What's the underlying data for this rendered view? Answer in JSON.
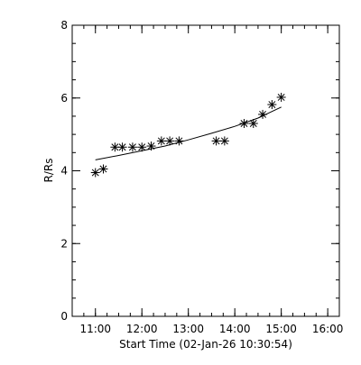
{
  "chart_data": {
    "type": "scatter",
    "title": "",
    "xlabel": "Start Time (02-Jan-26 10:30:54)",
    "ylabel": "R/Rs",
    "x_unit": "hours",
    "xlim": [
      10.5,
      16.25
    ],
    "ylim": [
      0,
      8
    ],
    "grid": false,
    "x_ticks": [
      {
        "value": 11,
        "label": "11:00"
      },
      {
        "value": 12,
        "label": "12:00"
      },
      {
        "value": 13,
        "label": "13:00"
      },
      {
        "value": 14,
        "label": "14:00"
      },
      {
        "value": 15,
        "label": "15:00"
      },
      {
        "value": 16,
        "label": "16:00"
      }
    ],
    "x_minor_step": 0.25,
    "y_ticks": [
      {
        "value": 0,
        "label": "0"
      },
      {
        "value": 2,
        "label": "2"
      },
      {
        "value": 4,
        "label": "4"
      },
      {
        "value": 6,
        "label": "6"
      },
      {
        "value": 8,
        "label": "8"
      }
    ],
    "y_minor_step": 0.5,
    "series": [
      {
        "type": "scatter",
        "marker": "asterisk",
        "x": [
          11.0,
          11.17,
          11.42,
          11.58,
          11.8,
          12.0,
          12.2,
          12.42,
          12.6,
          12.8,
          13.6,
          13.78,
          14.2,
          14.4,
          14.6,
          14.8,
          15.0
        ],
        "y": [
          3.95,
          4.05,
          4.65,
          4.65,
          4.65,
          4.65,
          4.68,
          4.82,
          4.82,
          4.82,
          4.82,
          4.82,
          5.3,
          5.3,
          5.55,
          5.82,
          6.02
        ]
      },
      {
        "type": "line",
        "x": [
          11.0,
          11.5,
          12.0,
          12.5,
          13.0,
          13.5,
          14.0,
          14.5,
          15.0
        ],
        "y": [
          4.3,
          4.42,
          4.55,
          4.68,
          4.85,
          5.03,
          5.22,
          5.45,
          5.75
        ]
      }
    ]
  }
}
